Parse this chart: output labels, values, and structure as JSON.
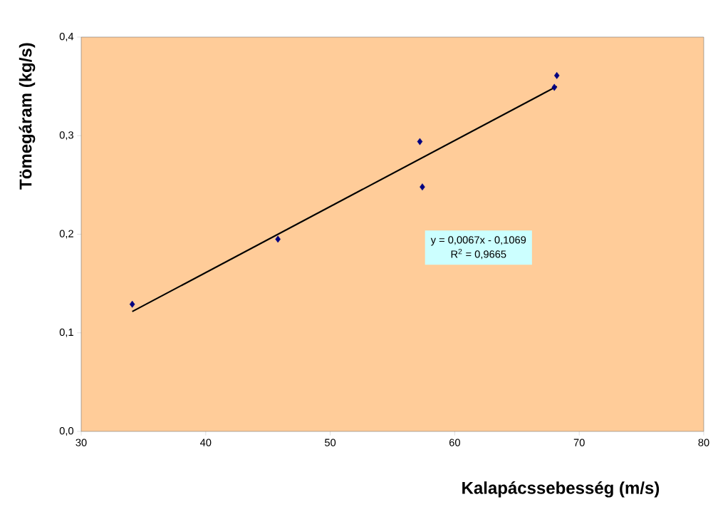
{
  "chart_data": {
    "type": "scatter",
    "xlabel": "Kalapácssebesség (m/s)",
    "ylabel": "Tömegáram (kg/s)",
    "series": [
      {
        "color": "#000080",
        "marker": "diamond",
        "x": [
          34.1,
          45.8,
          57.2,
          57.4,
          68.0,
          68.2
        ],
        "values": [
          0.129,
          0.195,
          0.294,
          0.248,
          0.349,
          0.361
        ]
      },
      {
        "type": "line",
        "color": "#000000",
        "marker": "none",
        "line_style": "solid",
        "x": [
          34.1,
          68.2
        ],
        "values": [
          0.1216,
          0.35
        ]
      }
    ],
    "xlim": [
      30,
      80
    ],
    "xticks": [
      30,
      40,
      50,
      60,
      70,
      80
    ],
    "ylim": [
      0,
      0.4
    ],
    "yticks": [
      {
        "value": 0,
        "label": "0,0"
      },
      {
        "value": 0.1,
        "label": "0,1"
      },
      {
        "value": 0.2,
        "label": "0,2"
      },
      {
        "value": 0.3,
        "label": "0,3"
      },
      {
        "value": 0.4,
        "label": "0,4"
      }
    ],
    "annotations": [
      "y = 0,0067x - 0,1069",
      "R$^{2}$ = 0,9665"
    ],
    "grid": false
  }
}
